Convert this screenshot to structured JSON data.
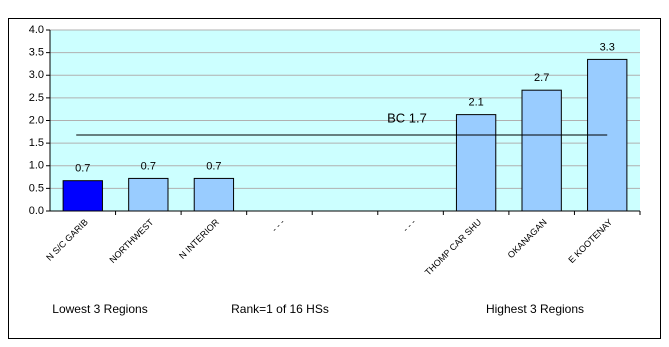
{
  "chart_data": {
    "type": "bar",
    "categories": [
      "N S/C GARIB",
      "NORTHWEST",
      "N INTERIOR",
      "- - -",
      null,
      "- - -",
      "THOMP CAR SHU",
      "OKANAGAN",
      "E KOOTENAY"
    ],
    "values": [
      0.67,
      0.72,
      0.72,
      null,
      null,
      null,
      2.13,
      2.67,
      3.35
    ],
    "value_labels": [
      "0.7",
      "0.7",
      "0.7",
      null,
      null,
      null,
      "2.1",
      "2.7",
      "3.3"
    ],
    "colors": [
      "#0000ff",
      "#99ccff",
      "#99ccff",
      null,
      null,
      null,
      "#99ccff",
      "#99ccff",
      "#99ccff"
    ],
    "ylim": [
      0,
      4
    ],
    "yticks": [
      {
        "value": 0,
        "label": "0.0"
      },
      {
        "value": 0.5,
        "label": "0.5"
      },
      {
        "value": 1,
        "label": "1.0"
      },
      {
        "value": 1.5,
        "label": "1.5"
      },
      {
        "value": 2,
        "label": "2.0"
      },
      {
        "value": 2.5,
        "label": "2.5"
      },
      {
        "value": 3,
        "label": "3.0"
      },
      {
        "value": 3.5,
        "label": "3.5"
      },
      {
        "value": 4,
        "label": "4.0"
      }
    ],
    "grid": true,
    "plot_background": "#ccffff",
    "reference_line": {
      "value": 1.68,
      "label": "BC 1.7"
    },
    "footer_labels": [
      "Lowest 3 Regions",
      "Rank=1 of 16 HSs",
      "Highest 3 Regions"
    ]
  }
}
